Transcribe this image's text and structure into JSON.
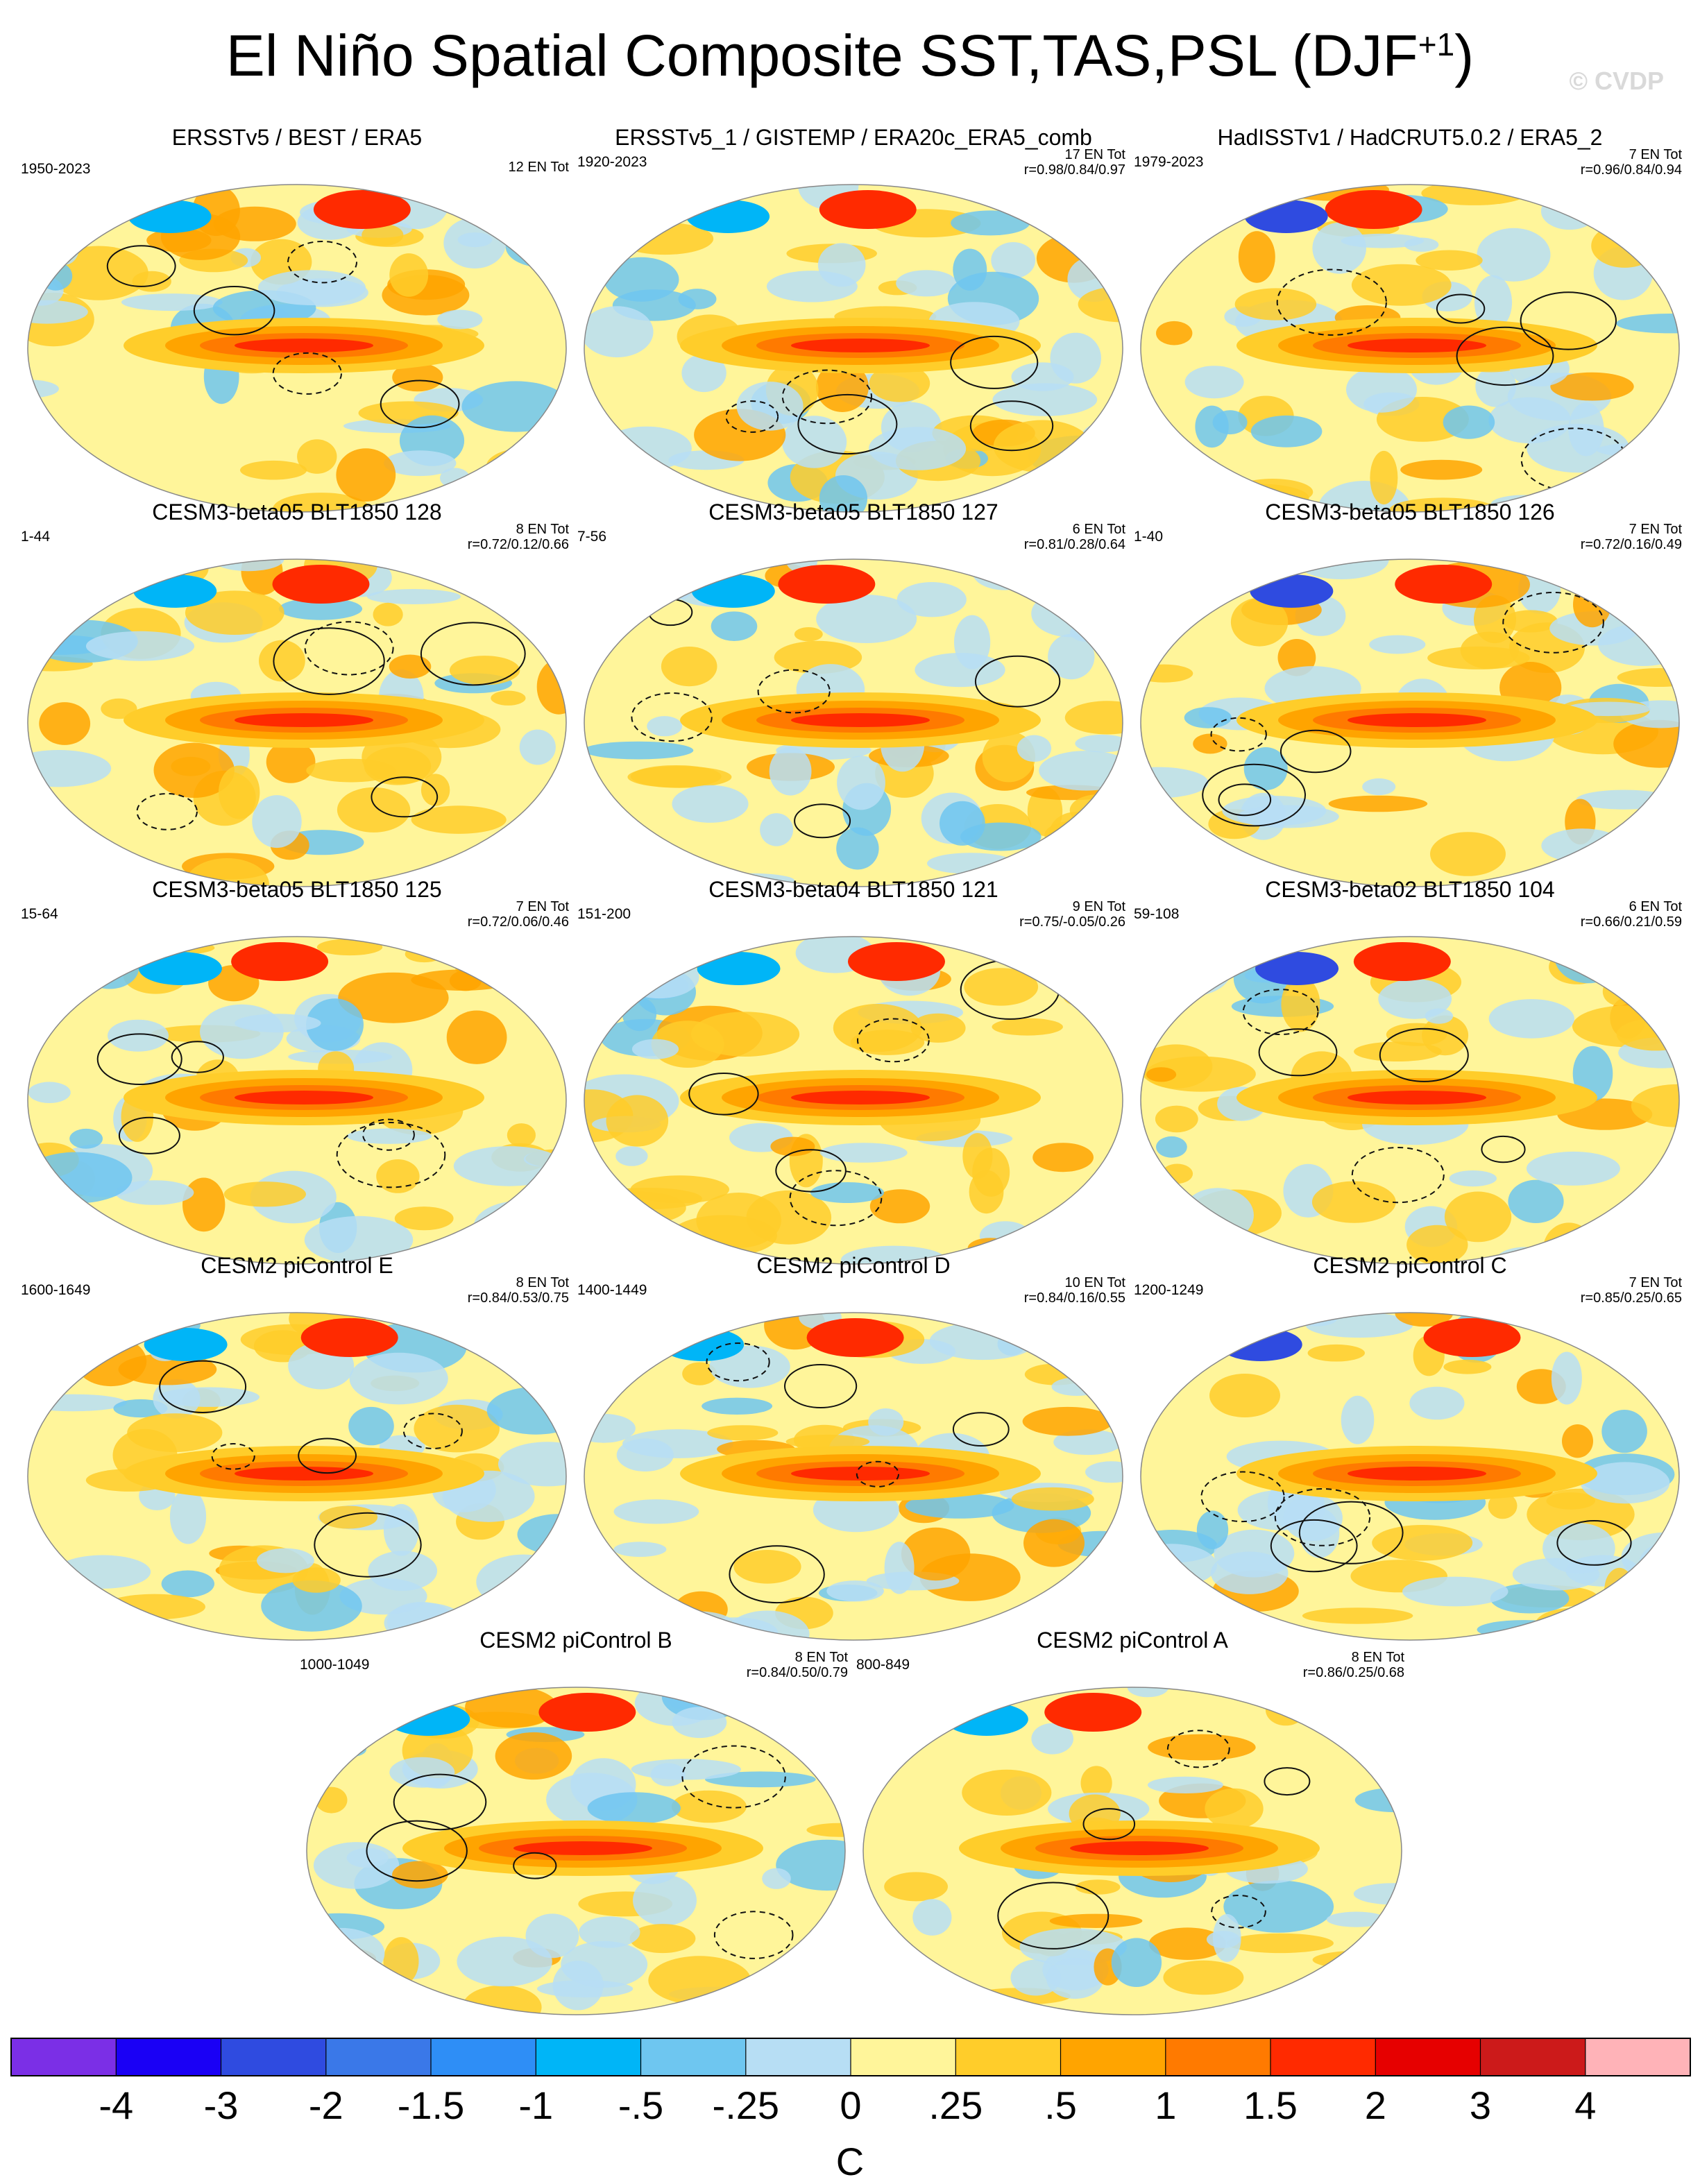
{
  "title": {
    "text": "El Niño Spatial Composite SST,TAS,PSL (DJF",
    "superscript": "+1",
    "close": ")"
  },
  "watermark": "© CVDP",
  "chart_data": {
    "type": "map-composite",
    "units": "C",
    "colorbar": {
      "ticks": [
        "-4",
        "-3",
        "-2",
        "-1.5",
        "-1",
        "-.5",
        "-.25",
        "0",
        ".25",
        ".5",
        "1",
        "1.5",
        "2",
        "3",
        "4"
      ],
      "colors": [
        "#7b2fe6",
        "#1a00f5",
        "#2f4be0",
        "#3a78e8",
        "#2e8ef6",
        "#00b5f7",
        "#6ec6f0",
        "#b7def4",
        "#fff59a",
        "#ffcd2a",
        "#ffa400",
        "#ff7a00",
        "#ff2a00",
        "#e60000",
        "#cc1a1a",
        "#ffb3b8"
      ]
    },
    "panels": [
      {
        "title": "ERSSTv5 / BEST / ERA5",
        "years": "1950-2023",
        "count": "12 EN Tot",
        "stats": ""
      },
      {
        "title": "ERSSTv5_1 / GISTEMP / ERA20c_ERA5_comb",
        "years": "1920-2023",
        "count": "17 EN Tot",
        "stats": "r=0.98/0.84/0.97"
      },
      {
        "title": "HadISSTv1 / HadCRUT5.0.2 / ERA5_2",
        "years": "1979-2023",
        "count": "7 EN Tot",
        "stats": "r=0.96/0.84/0.94"
      },
      {
        "title": "CESM3-beta05 BLT1850 128",
        "years": "1-44",
        "count": "8 EN Tot",
        "stats": "r=0.72/0.12/0.66"
      },
      {
        "title": "CESM3-beta05 BLT1850 127",
        "years": "7-56",
        "count": "6 EN Tot",
        "stats": "r=0.81/0.28/0.64"
      },
      {
        "title": "CESM3-beta05 BLT1850 126",
        "years": "1-40",
        "count": "7 EN Tot",
        "stats": "r=0.72/0.16/0.49"
      },
      {
        "title": "CESM3-beta05 BLT1850 125",
        "years": "15-64",
        "count": "7 EN Tot",
        "stats": "r=0.72/0.06/0.46"
      },
      {
        "title": "CESM3-beta04 BLT1850 121",
        "years": "151-200",
        "count": "9 EN Tot",
        "stats": "r=0.75/-0.05/0.26"
      },
      {
        "title": "CESM3-beta02 BLT1850 104",
        "years": "59-108",
        "count": "6 EN Tot",
        "stats": "r=0.66/0.21/0.59"
      },
      {
        "title": "CESM2 piControl E",
        "years": "1600-1649",
        "count": "8 EN Tot",
        "stats": "r=0.84/0.53/0.75"
      },
      {
        "title": "CESM2 piControl D",
        "years": "1400-1449",
        "count": "10 EN Tot",
        "stats": "r=0.84/0.16/0.55"
      },
      {
        "title": "CESM2 piControl C",
        "years": "1200-1249",
        "count": "7 EN Tot",
        "stats": "r=0.85/0.25/0.65"
      },
      {
        "title": "CESM2 piControl B",
        "years": "1000-1049",
        "count": "8 EN Tot",
        "stats": "r=0.84/0.50/0.79"
      },
      {
        "title": "CESM2 piControl A",
        "years": "800-849",
        "count": "8 EN Tot",
        "stats": "r=0.86/0.25/0.68"
      }
    ]
  }
}
